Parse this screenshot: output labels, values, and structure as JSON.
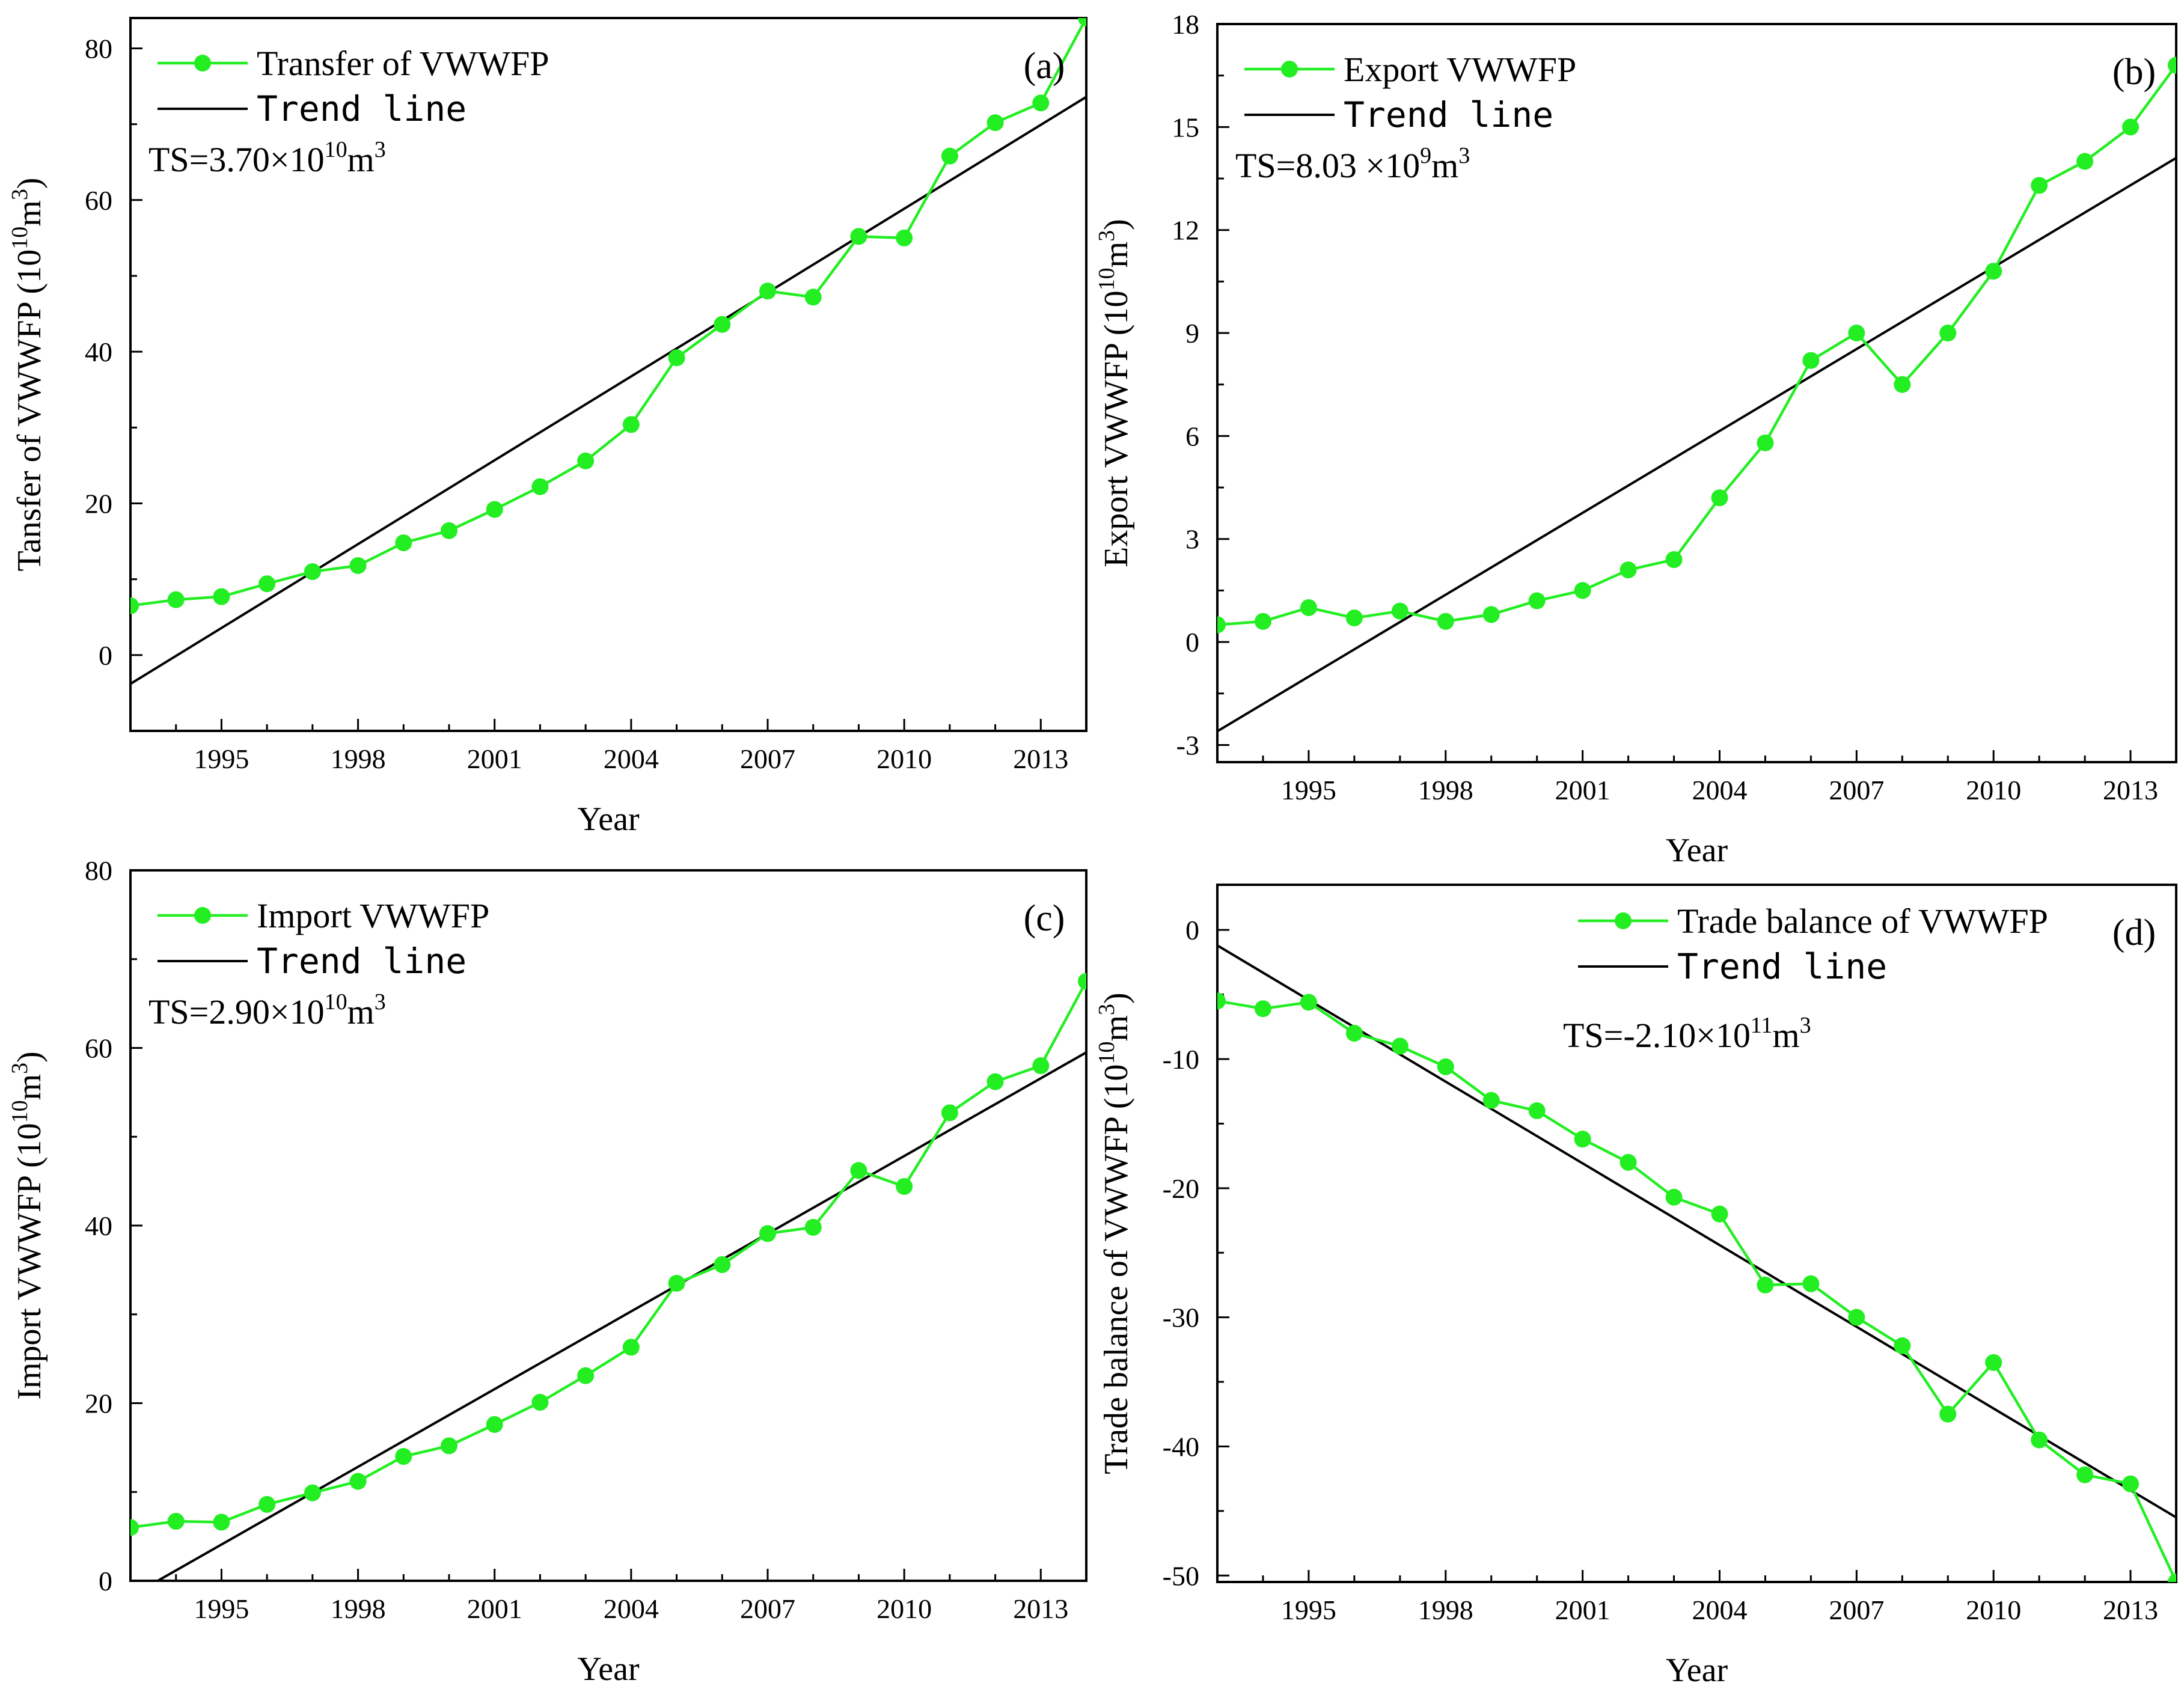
{
  "colors": {
    "series": "#22ee22",
    "trend": "#000000",
    "axis": "#000000"
  },
  "chart_data": [
    {
      "panel_label": "(a)",
      "type": "line",
      "series_name": "Transfer of VWWFP",
      "trend_name": "Trend line",
      "ts_text": {
        "prefix": "TS=3.70×10",
        "exp": "10",
        "unit": "m",
        "unit_exp": "3"
      },
      "xlabel": "Year",
      "ylabel": {
        "text": "Tansfer of VWWFP (10",
        "exp1": "10",
        "mid": "m",
        "exp2": "3",
        "close": ")"
      },
      "xlim": [
        1993,
        2014
      ],
      "ylim": [
        -10,
        84
      ],
      "xticks": [
        1995,
        1998,
        2001,
        2004,
        2007,
        2010,
        2013
      ],
      "yticks": [
        0,
        20,
        40,
        60,
        80
      ],
      "x": [
        1993,
        1994,
        1995,
        1996,
        1997,
        1998,
        1999,
        2000,
        2001,
        2002,
        2003,
        2004,
        2005,
        2006,
        2007,
        2008,
        2009,
        2010,
        2011,
        2012,
        2013,
        2014
      ],
      "values": [
        6.5,
        7.3,
        7.7,
        9.4,
        11.0,
        11.8,
        14.8,
        16.4,
        19.2,
        22.2,
        25.6,
        30.4,
        39.2,
        43.6,
        48.0,
        47.2,
        55.2,
        55.0,
        65.8,
        70.2,
        72.8,
        84.0
      ],
      "trend": {
        "x": [
          1993,
          2014
        ],
        "y": [
          -3.8,
          73.6
        ]
      }
    },
    {
      "panel_label": "(b)",
      "type": "line",
      "series_name": "Export VWWFP",
      "trend_name": "Trend line",
      "ts_text": {
        "prefix": "TS=8.03 ×10",
        "exp": "9",
        "unit": "m",
        "unit_exp": "3"
      },
      "xlabel": "Year",
      "ylabel": {
        "text": "Export VWWFP (10",
        "exp1": "10",
        "mid": "m",
        "exp2": "3",
        "close": ")"
      },
      "xlim": [
        1993,
        2014
      ],
      "ylim": [
        -3.5,
        18
      ],
      "xticks": [
        1995,
        1998,
        2001,
        2004,
        2007,
        2010,
        2013
      ],
      "yticks": [
        -3,
        0,
        3,
        6,
        9,
        12,
        15,
        18
      ],
      "x": [
        1993,
        1994,
        1995,
        1996,
        1997,
        1998,
        1999,
        2000,
        2001,
        2002,
        2003,
        2004,
        2005,
        2006,
        2007,
        2008,
        2009,
        2010,
        2011,
        2012,
        2013,
        2014
      ],
      "values": [
        0.5,
        0.6,
        1.0,
        0.7,
        0.9,
        0.6,
        0.8,
        1.2,
        1.5,
        2.1,
        2.4,
        4.2,
        5.8,
        8.2,
        9.0,
        7.5,
        9.0,
        10.8,
        13.3,
        14.0,
        15.0,
        16.8
      ],
      "trend": {
        "x": [
          1993,
          2014
        ],
        "y": [
          -2.6,
          14.1
        ]
      }
    },
    {
      "panel_label": "(c)",
      "type": "line",
      "series_name": "Import VWWFP",
      "trend_name": "Trend line",
      "ts_text": {
        "prefix": "TS=2.90×10",
        "exp": "10",
        "unit": "m",
        "unit_exp": "3"
      },
      "xlabel": "Year",
      "ylabel": {
        "text": "Import VWWFP (10",
        "exp1": "10",
        "mid": "m",
        "exp2": "3",
        "close": ")"
      },
      "xlim": [
        1993,
        2014
      ],
      "ylim": [
        0,
        80
      ],
      "xticks": [
        1995,
        1998,
        2001,
        2004,
        2007,
        2010,
        2013
      ],
      "yticks": [
        0,
        20,
        40,
        60,
        80
      ],
      "x": [
        1993,
        1994,
        1995,
        1996,
        1997,
        1998,
        1999,
        2000,
        2001,
        2002,
        2003,
        2004,
        2005,
        2006,
        2007,
        2008,
        2009,
        2010,
        2011,
        2012,
        2013,
        2014
      ],
      "values": [
        6.0,
        6.7,
        6.6,
        8.6,
        9.9,
        11.2,
        14.0,
        15.2,
        17.6,
        20.1,
        23.1,
        26.3,
        33.5,
        35.6,
        39.1,
        39.8,
        46.2,
        44.4,
        52.7,
        56.2,
        58.0,
        67.5
      ],
      "trend": {
        "x": [
          1993.6,
          2014
        ],
        "y": [
          0,
          59.5
        ]
      }
    },
    {
      "panel_label": "(d)",
      "type": "line",
      "series_name": "Trade balance of VWWFP",
      "trend_name": "Trend line",
      "ts_text": {
        "prefix": "TS=-2.10×10",
        "exp": "11",
        "unit": "m",
        "unit_exp": "3"
      },
      "xlabel": "Year",
      "ylabel": {
        "text": "Trade balance of VWWFP (10",
        "exp1": "10",
        "mid": "m",
        "exp2": "3",
        "close": ")"
      },
      "xlim": [
        1993,
        2014
      ],
      "ylim": [
        -50.5,
        3.5
      ],
      "xticks": [
        1995,
        1998,
        2001,
        2004,
        2007,
        2010,
        2013
      ],
      "yticks": [
        0,
        -10,
        -20,
        -30,
        -40,
        -50
      ],
      "x": [
        1993,
        1994,
        1995,
        1996,
        1997,
        1998,
        1999,
        2000,
        2001,
        2002,
        2003,
        2004,
        2005,
        2006,
        2007,
        2008,
        2009,
        2010,
        2011,
        2012,
        2013,
        2014
      ],
      "values": [
        -5.5,
        -6.1,
        -5.6,
        -8.0,
        -9.0,
        -10.6,
        -13.2,
        -14.0,
        -16.2,
        -18.0,
        -20.7,
        -22.0,
        -27.5,
        -27.4,
        -30.0,
        -32.2,
        -37.5,
        -33.5,
        -39.5,
        -42.2,
        -42.9,
        -50.5
      ],
      "trend": {
        "x": [
          1993,
          2014
        ],
        "y": [
          -1.2,
          -45.5
        ]
      }
    }
  ]
}
